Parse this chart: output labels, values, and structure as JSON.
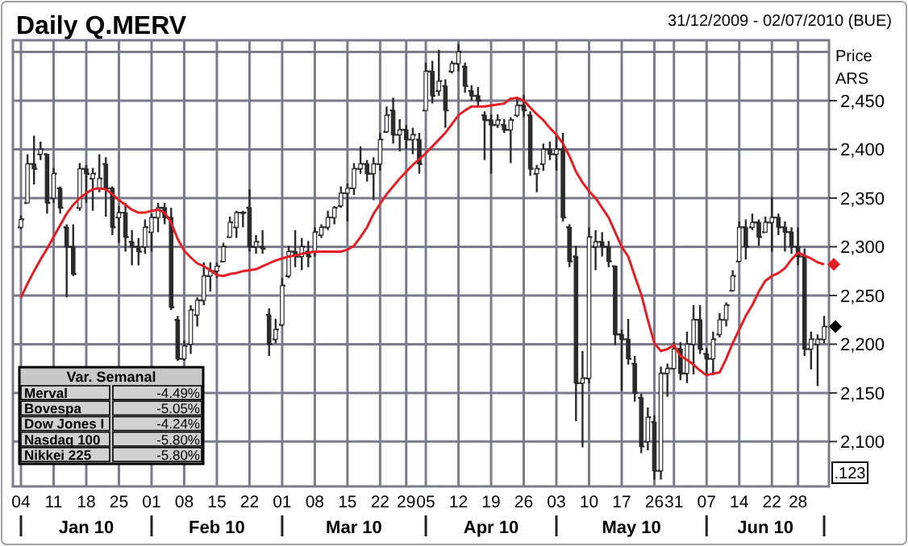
{
  "chart_data": [
    {
      "type": "candlestick",
      "title": "Daily Q.MERV",
      "subtitle": "31/12/2009 - 02/07/2010 (BUE)",
      "ylabel": "Price ARS",
      "color": "#2b2b2b",
      "grid": true,
      "categories": [
        "04",
        null,
        null,
        null,
        null,
        "11",
        null,
        null,
        null,
        null,
        "18",
        null,
        null,
        null,
        null,
        "25",
        null,
        null,
        null,
        null,
        "01",
        null,
        null,
        null,
        null,
        "08",
        null,
        null,
        null,
        null,
        "15",
        null,
        null,
        null,
        null,
        "22",
        null,
        null,
        null,
        null,
        "01",
        null,
        null,
        null,
        null,
        "08",
        null,
        null,
        null,
        null,
        "15",
        null,
        null,
        null,
        null,
        "22",
        null,
        null,
        null,
        "29",
        null,
        null,
        "05",
        null,
        null,
        null,
        null,
        "12",
        null,
        null,
        null,
        null,
        "19",
        null,
        null,
        null,
        null,
        "26",
        null,
        null,
        null,
        null,
        "03",
        null,
        null,
        null,
        null,
        "10",
        null,
        null,
        null,
        null,
        "17",
        null,
        null,
        null,
        null,
        "26",
        null,
        null,
        "31",
        null,
        null,
        null,
        null,
        "07",
        null,
        null,
        null,
        null,
        "14",
        null,
        null,
        null,
        null,
        "22",
        null,
        null,
        null,
        "28",
        null,
        null,
        null,
        null
      ],
      "ohlc": [
        [
          2320,
          2332,
          2318,
          2328
        ],
        [
          2345,
          2395,
          2345,
          2385
        ],
        [
          2385,
          2414,
          2364,
          2380
        ],
        [
          2395,
          2408,
          2389,
          2400
        ],
        [
          2395,
          2395,
          2334,
          2345
        ],
        [
          2350,
          2381,
          2345,
          2375
        ],
        [
          2360,
          2362,
          2334,
          2340
        ],
        [
          2320,
          2323,
          2248,
          2300
        ],
        [
          2300,
          2323,
          2270,
          2272
        ],
        [
          2340,
          2386,
          2337,
          2380
        ],
        [
          2380,
          2384,
          2345,
          2375
        ],
        [
          2370,
          2381,
          2337,
          2375
        ],
        [
          2360,
          2395,
          2356,
          2370
        ],
        [
          2385,
          2392,
          2331,
          2360
        ],
        [
          2360,
          2362,
          2312,
          2320
        ],
        [
          2330,
          2342,
          2304,
          2335
        ],
        [
          2335,
          2345,
          2295,
          2310
        ],
        [
          2305,
          2317,
          2281,
          2300
        ],
        [
          2300,
          2309,
          2281,
          2295
        ],
        [
          2300,
          2328,
          2293,
          2320
        ],
        [
          2315,
          2334,
          2295,
          2330
        ],
        [
          2330,
          2345,
          2315,
          2340
        ],
        [
          2340,
          2345,
          2323,
          2330
        ],
        [
          2330,
          2340,
          2235,
          2238
        ],
        [
          2225,
          2229,
          2183,
          2185
        ],
        [
          2185,
          2204,
          2183,
          2198
        ],
        [
          2200,
          2240,
          2190,
          2235
        ],
        [
          2230,
          2248,
          2218,
          2245
        ],
        [
          2245,
          2284,
          2240,
          2270
        ],
        [
          2270,
          2284,
          2254,
          2275
        ],
        [
          2275,
          2284,
          2268,
          2280
        ],
        [
          2285,
          2304,
          2284,
          2300
        ],
        [
          2310,
          2331,
          2309,
          2325
        ],
        [
          2320,
          2337,
          2309,
          2335
        ],
        [
          2335,
          2337,
          2320,
          2335
        ],
        [
          2340,
          2359,
          2295,
          2300
        ],
        [
          2300,
          2312,
          2293,
          2305
        ],
        [
          2300,
          2317,
          2293,
          2298
        ],
        [
          2230,
          2237,
          2188,
          2200
        ],
        [
          2205,
          2226,
          2201,
          2215
        ],
        [
          2220,
          2268,
          2218,
          2260
        ],
        [
          2270,
          2301,
          2268,
          2295
        ],
        [
          2295,
          2317,
          2279,
          2290
        ],
        [
          2290,
          2309,
          2276,
          2300
        ],
        [
          2295,
          2306,
          2279,
          2290
        ],
        [
          2295,
          2320,
          2290,
          2315
        ],
        [
          2312,
          2323,
          2309,
          2320
        ],
        [
          2320,
          2337,
          2317,
          2330
        ],
        [
          2330,
          2342,
          2323,
          2340
        ],
        [
          2342,
          2362,
          2340,
          2355
        ],
        [
          2355,
          2365,
          2326,
          2360
        ],
        [
          2360,
          2386,
          2353,
          2380
        ],
        [
          2380,
          2403,
          2375,
          2385
        ],
        [
          2385,
          2389,
          2367,
          2375
        ],
        [
          2375,
          2392,
          2348,
          2385
        ],
        [
          2385,
          2417,
          2378,
          2410
        ],
        [
          2418,
          2444,
          2417,
          2435
        ],
        [
          2440,
          2453,
          2406,
          2415
        ],
        [
          2415,
          2431,
          2398,
          2420
        ],
        [
          2420,
          2425,
          2400,
          2410
        ],
        [
          2410,
          2422,
          2395,
          2415
        ],
        [
          2410,
          2417,
          2375,
          2385
        ],
        [
          2440,
          2489,
          2439,
          2480
        ],
        [
          2480,
          2491,
          2447,
          2455
        ],
        [
          2460,
          2502,
          2455,
          2470
        ],
        [
          2465,
          2472,
          2422,
          2440
        ],
        [
          2480,
          2491,
          2478,
          2488
        ],
        [
          2488,
          2508,
          2480,
          2500
        ],
        [
          2485,
          2489,
          2458,
          2465
        ],
        [
          2460,
          2466,
          2450,
          2455
        ],
        [
          2455,
          2464,
          2444,
          2450
        ],
        [
          2435,
          2439,
          2389,
          2430
        ],
        [
          2430,
          2436,
          2375,
          2425
        ],
        [
          2425,
          2436,
          2422,
          2430
        ],
        [
          2425,
          2431,
          2417,
          2420
        ],
        [
          2420,
          2433,
          2386,
          2430
        ],
        [
          2435,
          2453,
          2433,
          2445
        ],
        [
          2445,
          2456,
          2433,
          2440
        ],
        [
          2435,
          2439,
          2373,
          2380
        ],
        [
          2375,
          2384,
          2356,
          2380
        ],
        [
          2385,
          2406,
          2378,
          2400
        ],
        [
          2400,
          2408,
          2389,
          2395
        ],
        [
          2395,
          2414,
          2378,
          2400
        ],
        [
          2400,
          2417,
          2326,
          2330
        ],
        [
          2320,
          2323,
          2279,
          2285
        ],
        [
          2290,
          2301,
          2121,
          2160
        ],
        [
          2160,
          2193,
          2094,
          2165
        ],
        [
          2165,
          2320,
          2160,
          2310
        ],
        [
          2300,
          2317,
          2276,
          2305
        ],
        [
          2305,
          2315,
          2290,
          2300
        ],
        [
          2300,
          2306,
          2279,
          2285
        ],
        [
          2280,
          2281,
          2199,
          2210
        ],
        [
          2210,
          2215,
          2152,
          2205
        ],
        [
          2205,
          2226,
          2179,
          2185
        ],
        [
          2180,
          2188,
          2141,
          2150
        ],
        [
          2145,
          2149,
          2088,
          2095
        ],
        [
          2100,
          2135,
          2091,
          2125
        ],
        [
          2120,
          2127,
          2061,
          2070
        ],
        [
          2070,
          2177,
          2061,
          2170
        ],
        [
          2170,
          2180,
          2146,
          2175
        ],
        [
          2175,
          2202,
          2174,
          2195
        ],
        [
          2195,
          2202,
          2163,
          2170
        ],
        [
          2170,
          2213,
          2160,
          2200
        ],
        [
          2200,
          2240,
          2169,
          2225
        ],
        [
          2225,
          2240,
          2190,
          2195
        ],
        [
          2190,
          2196,
          2168,
          2185
        ],
        [
          2185,
          2213,
          2168,
          2205
        ],
        [
          2210,
          2232,
          2207,
          2225
        ],
        [
          2225,
          2243,
          2218,
          2240
        ],
        [
          2255,
          2276,
          2254,
          2270
        ],
        [
          2285,
          2326,
          2284,
          2320
        ],
        [
          2320,
          2328,
          2287,
          2300
        ],
        [
          2320,
          2334,
          2317,
          2325
        ],
        [
          2325,
          2328,
          2301,
          2310
        ],
        [
          2315,
          2331,
          2315,
          2325
        ],
        [
          2325,
          2351,
          2295,
          2330
        ],
        [
          2330,
          2334,
          2312,
          2320
        ],
        [
          2320,
          2326,
          2295,
          2315
        ],
        [
          2315,
          2320,
          2293,
          2300
        ],
        [
          2300,
          2320,
          2281,
          2290
        ],
        [
          2290,
          2298,
          2188,
          2195
        ],
        [
          2195,
          2213,
          2174,
          2205
        ],
        [
          2200,
          2210,
          2157,
          2205
        ],
        [
          2205,
          2229,
          2201,
          2218
        ]
      ],
      "series": [
        {
          "type": "line",
          "color": "#e31e24",
          "values": [
            2248,
            2262,
            2275,
            2287,
            2298,
            2310,
            2322,
            2334,
            2343,
            2350,
            2355,
            2359,
            2360,
            2359,
            2354,
            2348,
            2343,
            2338,
            2335,
            2335,
            2337,
            2338,
            2335,
            2325,
            2308,
            2296,
            2289,
            2283,
            2280,
            2276,
            2271,
            2270,
            2272,
            2273,
            2275,
            2276,
            2277,
            2280,
            2283,
            2286,
            2288,
            2290,
            2291,
            2293,
            2294,
            2295,
            2295,
            2295,
            2295,
            2295,
            2297,
            2301,
            2310,
            2320,
            2334,
            2344,
            2354,
            2362,
            2370,
            2377,
            2384,
            2390,
            2396,
            2403,
            2410,
            2417,
            2426,
            2435,
            2440,
            2444,
            2444,
            2444,
            2445,
            2446,
            2447,
            2452,
            2453,
            2450,
            2443,
            2436,
            2430,
            2422,
            2415,
            2406,
            2393,
            2377,
            2366,
            2357,
            2350,
            2340,
            2330,
            2315,
            2300,
            2290,
            2270,
            2251,
            2225,
            2201,
            2193,
            2195,
            2199,
            2188,
            2184,
            2179,
            2173,
            2168,
            2170,
            2171,
            2185,
            2201,
            2215,
            2229,
            2240,
            2254,
            2265,
            2270,
            2273,
            2278,
            2287,
            2294,
            2291,
            2288,
            2284,
            2282
          ]
        }
      ],
      "ylim": [
        2054,
        2512
      ],
      "yticks": [
        {
          "value": 2100,
          "label": "2,100"
        },
        {
          "value": 2150,
          "label": "2,150"
        },
        {
          "value": 2200,
          "label": "2,200"
        },
        {
          "value": 2250,
          "label": "2,250"
        },
        {
          "value": 2300,
          "label": "2,300"
        },
        {
          "value": 2350,
          "label": "2,350"
        },
        {
          "value": 2400,
          "label": "2,400"
        },
        {
          "value": 2450,
          "label": "2,450"
        },
        {
          "value": 2500,
          "label": null
        }
      ],
      "annotations": [
        "Jan 10",
        "Feb 10",
        "Mar 10",
        "Apr 10",
        "May 10",
        "Jun 10",
        ".123"
      ]
    },
    {
      "type": "other",
      "title": "Var. Semanal",
      "categories": [
        "Merval",
        "Bovespa",
        "Dow Jones I",
        "Nasdaq 100",
        "Nikkei 225"
      ],
      "values": [
        -4.49,
        -5.05,
        -4.24,
        -5.8,
        -5.8
      ],
      "value_labels": [
        "-4.49%",
        "-5.05%",
        "-4.24%",
        "-5.80%",
        "-5.80%"
      ]
    }
  ]
}
